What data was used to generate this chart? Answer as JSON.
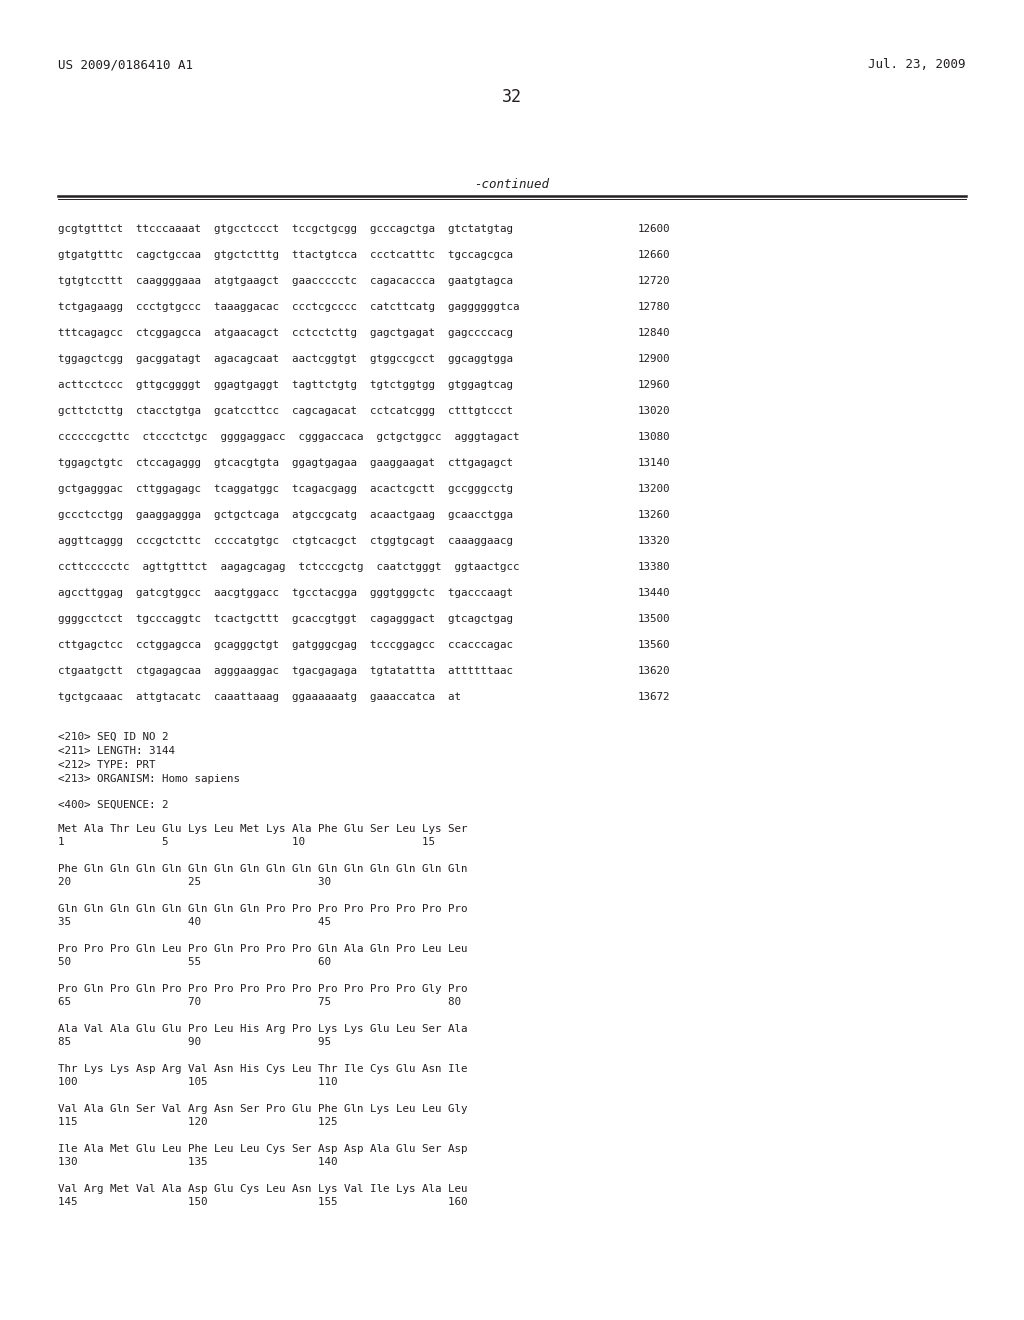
{
  "header_left": "US 2009/0186410 A1",
  "header_right": "Jul. 23, 2009",
  "page_number": "32",
  "continued_label": "-continued",
  "background_color": "#ffffff",
  "text_color": "#231f20",
  "sequence_lines": [
    {
      "text": "gcgtgtttct  ttcccaaaat  gtgcctccct  tccgctgcgg  gcccagctga  gtctatgtag",
      "num": "12600"
    },
    {
      "text": "gtgatgtttc  cagctgccaa  gtgctctttg  ttactgtcca  ccctcatttc  tgccagcgca",
      "num": "12660"
    },
    {
      "text": "tgtgtccttt  caaggggaaa  atgtgaagct  gaaccccctc  cagacaccca  gaatgtagca",
      "num": "12720"
    },
    {
      "text": "tctgagaagg  ccctgtgccc  taaaggacac  ccctcgcccc  catcttcatg  gaggggggtca",
      "num": "12780"
    },
    {
      "text": "tttcagagcc  ctcggagcca  atgaacagct  cctcctcttg  gagctgagat  gagccccacg",
      "num": "12840"
    },
    {
      "text": "tggagctcgg  gacggatagt  agacagcaat  aactcggtgt  gtggccgcct  ggcaggtgga",
      "num": "12900"
    },
    {
      "text": "acttcctccc  gttgcggggt  ggagtgaggt  tagttctgtg  tgtctggtgg  gtggagtcag",
      "num": "12960"
    },
    {
      "text": "gcttctcttg  ctacctgtga  gcatccttcc  cagcagacat  cctcatcggg  ctttgtccct",
      "num": "13020"
    },
    {
      "text": "ccccccgcttc  ctccctctgc  ggggaggacc  cgggaccaca  gctgctggcc  agggtagact",
      "num": "13080"
    },
    {
      "text": "tggagctgtc  ctccagaggg  gtcacgtgta  ggagtgagaa  gaaggaagat  cttgagagct",
      "num": "13140"
    },
    {
      "text": "gctgagggac  cttggagagc  tcaggatggc  tcagacgagg  acactcgctt  gccgggcctg",
      "num": "13200"
    },
    {
      "text": "gccctcctgg  gaaggaggga  gctgctcaga  atgccgcatg  acaactgaag  gcaacctgga",
      "num": "13260"
    },
    {
      "text": "aggttcaggg  cccgctcttc  ccccatgtgc  ctgtcacgct  ctggtgcagt  caaaggaacg",
      "num": "13320"
    },
    {
      "text": "ccttccccctc  agttgtttct  aagagcagag  tctcccgctg  caatctgggt  ggtaactgcc",
      "num": "13380"
    },
    {
      "text": "agccttggag  gatcgtggcc  aacgtggacc  tgcctacgga  gggtgggctc  tgacccaagt",
      "num": "13440"
    },
    {
      "text": "ggggcctcct  tgcccaggtc  tcactgcttt  gcaccgtggt  cagagggact  gtcagctgag",
      "num": "13500"
    },
    {
      "text": "cttgagctcc  cctggagcca  gcagggctgt  gatgggcgag  tcccggagcc  ccacccagac",
      "num": "13560"
    },
    {
      "text": "ctgaatgctt  ctgagagcaa  agggaaggac  tgacgagaga  tgtatattta  attttttaac",
      "num": "13620"
    },
    {
      "text": "tgctgcaaac  attgtacatc  caaattaaag  ggaaaaaatg  gaaaccatca  at",
      "num": "13672"
    }
  ],
  "metadata_lines": [
    "<210> SEQ ID NO 2",
    "<211> LENGTH: 3144",
    "<212> TYPE: PRT",
    "<213> ORGANISM: Homo sapiens"
  ],
  "sequence_label": "<400> SEQUENCE: 2",
  "protein_lines": [
    {
      "seq": "Met Ala Thr Leu Glu Lys Leu Met Lys Ala Phe Glu Ser Leu Lys Ser",
      "nums": "1               5                   10                  15"
    },
    {
      "seq": "Phe Gln Gln Gln Gln Gln Gln Gln Gln Gln Gln Gln Gln Gln Gln Gln",
      "nums": "20                  25                  30"
    },
    {
      "seq": "Gln Gln Gln Gln Gln Gln Gln Gln Pro Pro Pro Pro Pro Pro Pro Pro",
      "nums": "35                  40                  45"
    },
    {
      "seq": "Pro Pro Pro Gln Leu Pro Gln Pro Pro Pro Gln Ala Gln Pro Leu Leu",
      "nums": "50                  55                  60"
    },
    {
      "seq": "Pro Gln Pro Gln Pro Pro Pro Pro Pro Pro Pro Pro Pro Pro Gly Pro",
      "nums": "65                  70                  75                  80"
    },
    {
      "seq": "Ala Val Ala Glu Glu Pro Leu His Arg Pro Lys Lys Glu Leu Ser Ala",
      "nums": "85                  90                  95"
    },
    {
      "seq": "Thr Lys Lys Asp Arg Val Asn His Cys Leu Thr Ile Cys Glu Asn Ile",
      "nums": "100                 105                 110"
    },
    {
      "seq": "Val Ala Gln Ser Val Arg Asn Ser Pro Glu Phe Gln Lys Leu Leu Gly",
      "nums": "115                 120                 125"
    },
    {
      "seq": "Ile Ala Met Glu Leu Phe Leu Leu Cys Ser Asp Asp Ala Glu Ser Asp",
      "nums": "130                 135                 140"
    },
    {
      "seq": "Val Arg Met Val Ala Asp Glu Cys Leu Asn Lys Val Ile Lys Ala Leu",
      "nums": "145                 150                 155                 160"
    }
  ]
}
